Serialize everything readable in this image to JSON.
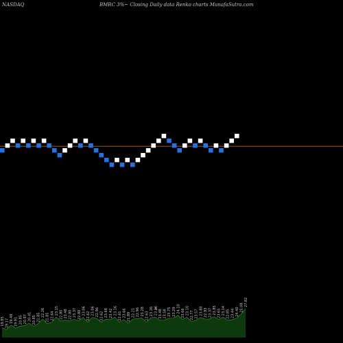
{
  "header": {
    "exchange": "NASDAQ",
    "description": "BMRC 3%~  Closing Daily data  Renko  charts MunafaSutra.com"
  },
  "colors": {
    "background": "#000000",
    "up_brick": "#ffffff",
    "down_brick": "#1e73e6",
    "last_price_line": "#b8601c",
    "volume_fill": "#0c3a0c",
    "volume_line": "#2f8f2f",
    "volume_label": "#c8c8c8"
  },
  "chart_data": {
    "type": "renko",
    "brick_size_label": "3%",
    "bricks": [
      {
        "level": 0,
        "dir": "down"
      },
      {
        "level": 1,
        "dir": "up"
      },
      {
        "level": 2,
        "dir": "up"
      },
      {
        "level": 1,
        "dir": "down"
      },
      {
        "level": 2,
        "dir": "up"
      },
      {
        "level": 1,
        "dir": "down"
      },
      {
        "level": 2,
        "dir": "up"
      },
      {
        "level": 1,
        "dir": "down"
      },
      {
        "level": 2,
        "dir": "up"
      },
      {
        "level": 1,
        "dir": "down"
      },
      {
        "level": 0,
        "dir": "down"
      },
      {
        "level": -1,
        "dir": "down"
      },
      {
        "level": 0,
        "dir": "up"
      },
      {
        "level": 1,
        "dir": "up"
      },
      {
        "level": 2,
        "dir": "up"
      },
      {
        "level": 1,
        "dir": "down"
      },
      {
        "level": 2,
        "dir": "up"
      },
      {
        "level": 1,
        "dir": "down"
      },
      {
        "level": 0,
        "dir": "down"
      },
      {
        "level": -1,
        "dir": "down"
      },
      {
        "level": -2,
        "dir": "down"
      },
      {
        "level": -3,
        "dir": "down"
      },
      {
        "level": -2,
        "dir": "up"
      },
      {
        "level": -3,
        "dir": "down"
      },
      {
        "level": -2,
        "dir": "up"
      },
      {
        "level": -3,
        "dir": "down"
      },
      {
        "level": -2,
        "dir": "up"
      },
      {
        "level": -1,
        "dir": "up"
      },
      {
        "level": 0,
        "dir": "up"
      },
      {
        "level": 1,
        "dir": "up"
      },
      {
        "level": 2,
        "dir": "up"
      },
      {
        "level": 3,
        "dir": "up"
      },
      {
        "level": 2,
        "dir": "down"
      },
      {
        "level": 1,
        "dir": "down"
      },
      {
        "level": 0,
        "dir": "down"
      },
      {
        "level": 1,
        "dir": "up"
      },
      {
        "level": 2,
        "dir": "up"
      },
      {
        "level": 1,
        "dir": "down"
      },
      {
        "level": 2,
        "dir": "up"
      },
      {
        "level": 1,
        "dir": "down"
      },
      {
        "level": 0,
        "dir": "down"
      },
      {
        "level": 1,
        "dir": "up"
      },
      {
        "level": 0,
        "dir": "down"
      },
      {
        "level": 1,
        "dir": "up"
      },
      {
        "level": 2,
        "dir": "up"
      },
      {
        "level": 3,
        "dir": "up"
      }
    ],
    "last_price_level": 0.9,
    "volume_labels": [
      "19.85",
      "19.17",
      "19.49",
      "19.91",
      "20.85",
      "20.97",
      "20.41",
      "20.85",
      "21.85",
      "22.26",
      "21.85",
      "22.64",
      "23.15",
      "22.80",
      "23.48",
      "22.80",
      "23.37",
      "22.80",
      "23.06",
      "22.62",
      "23.06",
      "22.96",
      "22.62",
      "23.68",
      "23.42",
      "23.16",
      "22.61",
      "23.66",
      "21.89",
      "22.21",
      "22.96",
      "23.28",
      "22.63",
      "23.26",
      "23.16",
      "23.48",
      "23.58",
      "23.75",
      "23.29",
      "24.10",
      "23.66",
      "23.10",
      "22.77",
      "23.57",
      "23.80",
      "22.93",
      "23.37",
      "23.85",
      "23.65",
      "23.14",
      "22.85",
      "23.44",
      "24.40",
      "25.08",
      "27.82"
    ],
    "volume_marker": "6"
  }
}
